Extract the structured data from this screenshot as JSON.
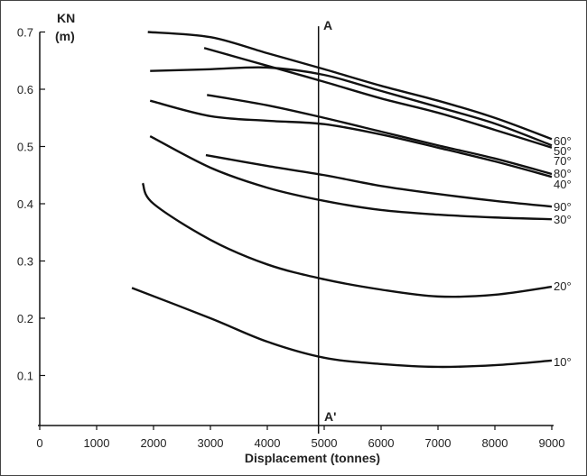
{
  "chart_data": {
    "type": "line",
    "title": "",
    "xlabel": "Displacement (tonnes)",
    "ylabel": "KN",
    "ylabel_unit": "(m)",
    "xlim": [
      0,
      9000
    ],
    "ylim": [
      0,
      0.7
    ],
    "xticks": [
      0,
      1000,
      2000,
      3000,
      4000,
      5000,
      6000,
      7000,
      8000,
      9000
    ],
    "yticks": [
      0.1,
      0.2,
      0.3,
      0.4,
      0.5,
      0.6,
      0.7
    ],
    "grid": false,
    "reference_line": {
      "x": 4900,
      "top_label": "A",
      "bottom_label": "A'"
    },
    "series": [
      {
        "name": "10°",
        "x": [
          1620,
          3000,
          4000,
          5000,
          6000,
          7000,
          8000,
          9000
        ],
        "y": [
          0.253,
          0.2,
          0.159,
          0.131,
          0.12,
          0.115,
          0.118,
          0.126
        ]
      },
      {
        "name": "20°",
        "x": [
          1810,
          2000,
          3000,
          4000,
          5000,
          6000,
          7000,
          8000,
          9000
        ],
        "y": [
          0.436,
          0.4,
          0.337,
          0.294,
          0.268,
          0.25,
          0.238,
          0.241,
          0.255
        ]
      },
      {
        "name": "30°",
        "x": [
          1940,
          3000,
          4000,
          5000,
          6000,
          7000,
          8000,
          9000
        ],
        "y": [
          0.518,
          0.463,
          0.428,
          0.405,
          0.389,
          0.381,
          0.376,
          0.373
        ]
      },
      {
        "name": "40°",
        "x": [
          1940,
          3000,
          4000,
          5000,
          6000,
          7000,
          8000,
          9000
        ],
        "y": [
          0.58,
          0.553,
          0.545,
          0.539,
          0.521,
          0.498,
          0.474,
          0.447
        ]
      },
      {
        "name": "50°",
        "x": [
          2890,
          4000,
          5000,
          6000,
          7000,
          8000,
          9000
        ],
        "y": [
          0.672,
          0.641,
          0.613,
          0.584,
          0.559,
          0.529,
          0.498
        ]
      },
      {
        "name": "60°",
        "x": [
          1900,
          3000,
          4000,
          5000,
          6000,
          7000,
          8000,
          9000
        ],
        "y": [
          0.7,
          0.691,
          0.663,
          0.635,
          0.606,
          0.58,
          0.55,
          0.513
        ]
      },
      {
        "name": "70°",
        "x": [
          1940,
          3000,
          4000,
          5000,
          6000,
          7000,
          8000,
          9000
        ],
        "y": [
          0.632,
          0.635,
          0.638,
          0.625,
          0.597,
          0.569,
          0.54,
          0.502
        ]
      },
      {
        "name": "80°",
        "x": [
          2940,
          4000,
          5000,
          6000,
          7000,
          8000,
          9000
        ],
        "y": [
          0.59,
          0.572,
          0.55,
          0.526,
          0.502,
          0.479,
          0.452
        ]
      },
      {
        "name": "90°",
        "x": [
          2920,
          4000,
          5000,
          6000,
          7000,
          8000,
          9000
        ],
        "y": [
          0.485,
          0.466,
          0.45,
          0.431,
          0.417,
          0.405,
          0.395
        ]
      }
    ],
    "end_labels": [
      "60°",
      "50°",
      "70°",
      "80°",
      "40°",
      "90°",
      "30°",
      "20°",
      "10°"
    ]
  }
}
